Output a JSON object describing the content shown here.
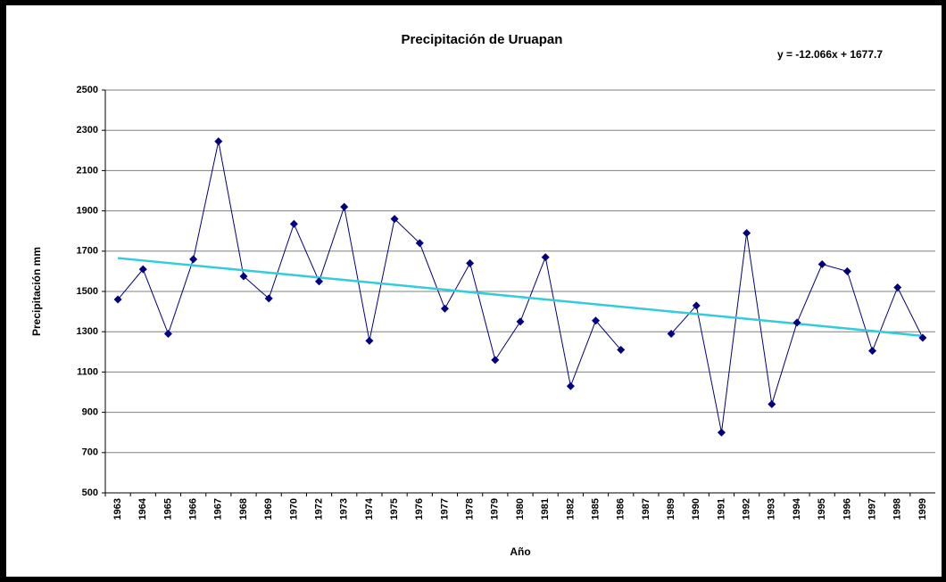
{
  "chart_data": {
    "type": "line",
    "title": "Precipitación de Uruapan",
    "xlabel": "Año",
    "ylabel": "Precipitación mm",
    "categories": [
      "1963",
      "1964",
      "1965",
      "1966",
      "1967",
      "1968",
      "1969",
      "1970",
      "1972",
      "1973",
      "1974",
      "1975",
      "1976",
      "1977",
      "1978",
      "1979",
      "1980",
      "1981",
      "1982",
      "1985",
      "1986",
      "1987",
      "1989",
      "1990",
      "1991",
      "1992",
      "1993",
      "1994",
      "1995",
      "1996",
      "1997",
      "1998",
      "1999"
    ],
    "series": [
      {
        "name": "Precipitación",
        "color": "#000080",
        "values": [
          1460,
          1610,
          1290,
          1660,
          2245,
          1575,
          1465,
          1835,
          1550,
          1920,
          1255,
          1860,
          1740,
          1415,
          1640,
          1160,
          1350,
          1670,
          1030,
          1355,
          1210,
          null,
          1290,
          1430,
          800,
          1790,
          940,
          1345,
          1635,
          1600,
          1205,
          1520,
          1270
        ]
      }
    ],
    "trendline": {
      "label": "y = -12.066x + 1677.7",
      "slope": -12.066,
      "intercept": 1677.7,
      "color": "#33ccdd"
    },
    "ylim": [
      500,
      2500
    ],
    "yticks": [
      500,
      700,
      900,
      1100,
      1300,
      1500,
      1700,
      1900,
      2100,
      2300,
      2500
    ],
    "grid": true
  }
}
